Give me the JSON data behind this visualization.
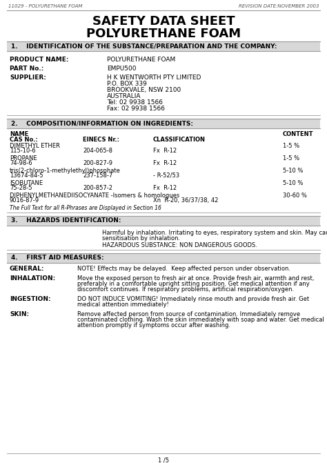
{
  "header_left": "11029 - POLYURETHANE FOAM",
  "header_right": "REVISION DATE:NOVEMBER 2003",
  "title_line1": "SAFETY DATA SHEET",
  "title_line2": "POLYURETHANE FOAM",
  "sections": [
    {
      "num": "1.   ",
      "title": "IDENTIFICATION OF THE SUBSTANCE/PREPARATION AND THE COMPANY:"
    },
    {
      "num": "2.   ",
      "title": "COMPOSITION/INFORMATION ON INGREDIENTS:"
    },
    {
      "num": "3.   ",
      "title": "HAZARDS IDENTIFICATION:"
    },
    {
      "num": "4.   ",
      "title": "FIRST AID MEASURES:"
    }
  ],
  "section1_fields": [
    {
      "label": "PRODUCT NAME:",
      "value": "POLYURETHANE FOAM"
    },
    {
      "label": "PART No.:",
      "value": "EMPU500"
    },
    {
      "label": "SUPPLIER:",
      "value": "H K WENTWORTH PTY LIMITED\nP.O. BOX 339\nBROOKVALE, NSW 2100\nAUSTRALIA\nTel: 02 9938 1566\nFax: 02 9938 1566"
    }
  ],
  "col_name": 0.025,
  "col_einecs": 0.255,
  "col_class": 0.465,
  "col_content": 0.875,
  "section2_ingredients": [
    {
      "name": "DIMETHYL ETHER",
      "cas": "115-10-6",
      "einecs": "204-065-8",
      "class": "Fx  R-12",
      "content": "1-5 %"
    },
    {
      "name": "PROPANE",
      "cas": "74-98-6",
      "einecs": "200-827-9",
      "class": "Fx  R-12",
      "content": "1-5 %"
    },
    {
      "name": "tris(2-chloro-1-methylethyl)phosphate",
      "cas": "13674-84-5",
      "einecs": "237-158-7",
      "class": "- R-52/53",
      "content": "5-10 %"
    },
    {
      "name": "ISOBUTANE",
      "cas": "75-28-5",
      "einecs": "200-857-2",
      "class": "Fx  R-12",
      "content": "5-10 %"
    },
    {
      "name": "DIPHENYLMETHANEDIISOCYANATE -Isomers & homologues",
      "cas": "9016-87-9",
      "einecs": "",
      "class": "Xn  R-20, 36/37/38, 42",
      "content": "30-60 %"
    }
  ],
  "section2_note": "The Full Text for all R-Phrases are Displayed in Section 16",
  "section3_text1": "Harmful by inhalation. Irritating to eyes, respiratory system and skin. May cause\nsensitisation by inhalation.",
  "section3_text2": "HAZARDOUS SUBSTANCE: NON DANGEROUS GOODS.",
  "section4_fields": [
    {
      "label": "GENERAL:",
      "value": "NOTE! Effects may be delayed.  Keep affected person under observation."
    },
    {
      "label": "INHALATION:",
      "value": "Move the exposed person to fresh air at once. Provide fresh air, warmth and rest,\npreferably in a comfortable upright sitting position. Get medical attention if any\ndiscomfort continues. If respiratory problems, artificial respiration/oxygen."
    },
    {
      "label": "INGESTION:",
      "value": "DO NOT INDUCE VOMITING! Immediately rinse mouth and provide fresh air. Get\nmedical attention immediately!"
    },
    {
      "label": "SKIN:",
      "value": "Remove affected person from source of contamination. Immediately remove\ncontaminated clothing. Wash the skin immediately with soap and water. Get medical\nattention promptly if symptoms occur after washing."
    }
  ],
  "footer": "1 /5",
  "bg_color": "#ffffff",
  "section_bg": "#d8d8d8",
  "line_color": "#888888"
}
